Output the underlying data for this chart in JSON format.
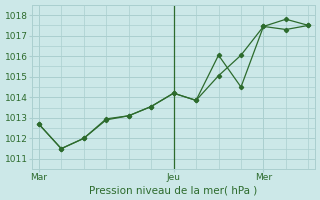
{
  "background_color": "#cce8e8",
  "grid_color": "#aacfcf",
  "line_color": "#2d6b2d",
  "xlabel": "Pression niveau de la mer( hPa )",
  "ylim": [
    1010.5,
    1018.5
  ],
  "yticks": [
    1011,
    1012,
    1013,
    1014,
    1015,
    1016,
    1017,
    1018
  ],
  "line1_y": [
    1012.7,
    1011.5,
    1012.0,
    1012.9,
    1013.1,
    1013.55,
    1014.2,
    1013.85,
    1016.05,
    1014.5,
    1017.45,
    1017.8,
    1017.5
  ],
  "line2_y": [
    1012.7,
    1011.5,
    1012.0,
    1012.95,
    1013.1,
    1013.55,
    1014.2,
    1013.85,
    1015.05,
    1016.05,
    1017.45,
    1017.3,
    1017.5
  ],
  "vline_x": 6,
  "day_labels": [
    "Mar",
    "Jeu",
    "Mer"
  ],
  "day_positions": [
    0,
    6,
    10
  ],
  "num_points": 13,
  "xlabel_fontsize": 7.5,
  "tick_fontsize": 6.5
}
